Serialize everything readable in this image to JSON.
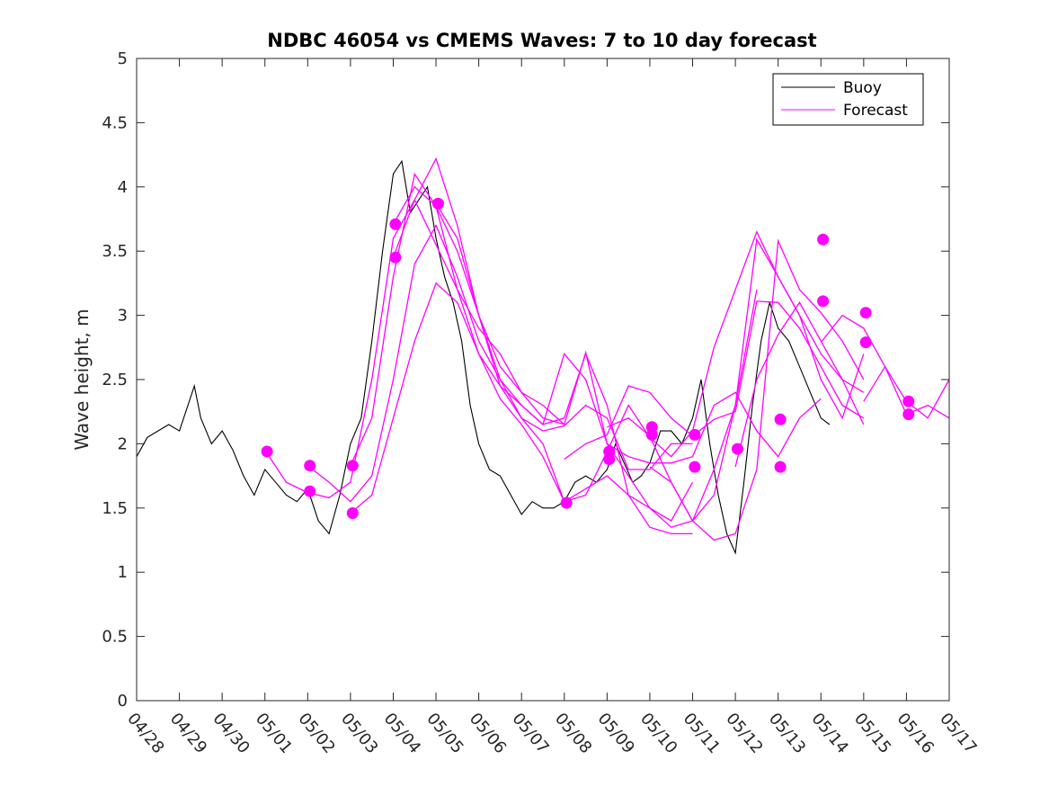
{
  "chart_data": {
    "type": "line",
    "title": "NDBC 46054 vs CMEMS Waves: 7 to 10 day forecast",
    "xlabel": "",
    "ylabel": "Wave height, m",
    "ylim": [
      0,
      5
    ],
    "xlim": [
      "04/28",
      "05/17"
    ],
    "x_ticks": [
      "04/28",
      "04/29",
      "04/30",
      "05/01",
      "05/02",
      "05/03",
      "05/04",
      "05/05",
      "05/06",
      "05/07",
      "05/08",
      "05/09",
      "05/10",
      "05/11",
      "05/12",
      "05/13",
      "05/14",
      "05/15",
      "05/16",
      "05/17"
    ],
    "y_ticks": [
      "0",
      "0.5",
      "1",
      "1.5",
      "2",
      "2.5",
      "3",
      "3.5",
      "4",
      "4.5",
      "5"
    ],
    "grid": false,
    "legend_position": "top-right",
    "colors": {
      "buoy": "#000000",
      "forecast": "#ff00ff"
    },
    "series": [
      {
        "name": "Buoy",
        "x_days": [
          0,
          0.25,
          0.5,
          0.75,
          1,
          1.2,
          1.35,
          1.5,
          1.75,
          2,
          2.25,
          2.5,
          2.75,
          3,
          3.25,
          3.5,
          3.75,
          4,
          4.25,
          4.5,
          4.75,
          5,
          5.25,
          5.5,
          5.75,
          6,
          6.2,
          6.4,
          6.6,
          6.8,
          7,
          7.2,
          7.4,
          7.6,
          7.8,
          8,
          8.25,
          8.5,
          8.75,
          9,
          9.25,
          9.5,
          9.75,
          10,
          10.25,
          10.5,
          10.75,
          11,
          11.2,
          11.4,
          11.6,
          11.8,
          12,
          12.25,
          12.5,
          12.75,
          13,
          13.2,
          13.4,
          13.6,
          13.8,
          14,
          14.2,
          14.4,
          14.6,
          14.8,
          15,
          15.25,
          15.5,
          15.75,
          16,
          16.2
        ],
        "values": [
          1.9,
          2.05,
          2.1,
          2.15,
          2.1,
          2.3,
          2.45,
          2.2,
          2.0,
          2.1,
          1.95,
          1.75,
          1.6,
          1.8,
          1.7,
          1.6,
          1.55,
          1.65,
          1.4,
          1.3,
          1.6,
          2.0,
          2.2,
          2.8,
          3.5,
          4.1,
          4.2,
          3.8,
          3.9,
          4.0,
          3.6,
          3.3,
          3.1,
          2.8,
          2.3,
          2.0,
          1.8,
          1.75,
          1.6,
          1.45,
          1.55,
          1.5,
          1.5,
          1.55,
          1.7,
          1.75,
          1.7,
          1.8,
          2.0,
          1.85,
          1.7,
          1.75,
          1.85,
          2.1,
          2.1,
          2.0,
          2.2,
          2.5,
          2.0,
          1.6,
          1.3,
          1.15,
          1.7,
          2.3,
          2.8,
          3.1,
          2.9,
          2.8,
          2.6,
          2.4,
          2.2,
          2.15
        ]
      },
      {
        "name": "Forecast",
        "runs": [
          {
            "x_days": [
              3,
              3.5,
              4,
              4.5,
              5,
              5.5,
              6,
              6.5,
              7,
              7.5,
              8,
              8.5,
              9,
              9.5,
              10
            ],
            "values": [
              1.95,
              1.7,
              1.62,
              1.58,
              1.7,
              2.5,
              3.6,
              3.9,
              3.55,
              3.2,
              2.9,
              2.7,
              2.4,
              2.3,
              2.15
            ]
          },
          {
            "x_days": [
              4,
              4.5,
              5,
              5.5,
              6,
              6.5,
              7,
              7.5,
              8,
              8.5,
              9,
              9.5,
              10,
              10.5,
              11,
              11.5,
              12,
              12.5,
              13
            ],
            "values": [
              1.83,
              1.7,
              1.55,
              1.75,
              2.5,
              3.4,
              3.7,
              3.3,
              2.8,
              2.5,
              2.3,
              2.15,
              2.2,
              2.7,
              2.3,
              1.6,
              1.35,
              1.3,
              1.3
            ]
          },
          {
            "x_days": [
              5,
              5.5,
              6,
              6.5,
              7,
              7.5,
              8,
              8.5,
              9,
              9.5,
              10,
              10.5,
              11,
              11.5,
              12,
              12.5,
              13,
              13.5,
              14,
              14.5
            ],
            "values": [
              1.83,
              2.2,
              3.3,
              4.1,
              3.85,
              3.2,
              2.7,
              2.45,
              2.3,
              2.15,
              2.7,
              2.5,
              2.0,
              1.75,
              1.5,
              1.35,
              1.4,
              1.8,
              2.3,
              3.2
            ]
          },
          {
            "x_days": [
              5,
              5.5,
              6,
              6.5,
              7,
              7.5,
              8,
              8.5,
              9,
              9.5,
              10,
              10.5,
              11,
              11.5,
              12,
              12.5,
              13
            ],
            "values": [
              1.46,
              1.6,
              2.2,
              2.8,
              3.25,
              3.1,
              2.7,
              2.35,
              2.15,
              1.9,
              1.55,
              1.65,
              1.75,
              1.6,
              1.5,
              1.4,
              1.7
            ]
          },
          {
            "x_days": [
              6,
              6.5,
              7,
              7.5,
              8,
              8.5,
              9,
              9.5,
              10,
              10.5,
              11,
              11.5,
              12,
              12.5,
              13,
              13.5,
              14,
              14.5,
              15,
              15.5,
              16
            ],
            "values": [
              3.71,
              4.0,
              3.85,
              3.5,
              3.0,
              2.6,
              2.4,
              2.2,
              2.15,
              2.71,
              2.0,
              1.9,
              1.85,
              1.85,
              1.9,
              2.3,
              2.4,
              2.1,
              1.9,
              2.2,
              2.35
            ]
          },
          {
            "x_days": [
              6,
              6.5,
              7,
              7.5,
              8,
              8.5,
              9,
              9.5,
              10,
              10.5,
              11,
              11.5,
              12,
              12.5,
              13
            ],
            "values": [
              3.45,
              3.9,
              4.22,
              3.7,
              3.0,
              2.5,
              2.2,
              2.1,
              2.14,
              2.3,
              2.2,
              1.8,
              1.8,
              2.0,
              2.0
            ]
          },
          {
            "x_days": [
              7,
              7.5,
              8,
              8.5,
              9,
              9.5,
              10,
              10.5,
              11,
              11.5,
              12,
              12.5,
              13,
              13.5,
              14,
              14.5,
              15,
              15.5,
              16,
              16.5,
              17
            ],
            "values": [
              3.87,
              3.6,
              3.0,
              2.45,
              2.2,
              2.0,
              1.55,
              1.6,
              1.94,
              2.3,
              2.05,
              1.9,
              2.1,
              2.75,
              3.2,
              3.65,
              3.3,
              3.0,
              2.7,
              2.5,
              2.4
            ]
          },
          {
            "x_days": [
              10,
              10.5,
              11,
              11.5,
              12,
              12.5,
              13,
              13.5,
              14,
              14.5,
              15,
              15.5,
              16,
              16.5,
              17
            ],
            "values": [
              1.88,
              2.0,
              2.07,
              2.45,
              2.4,
              2.2,
              2.06,
              2.19,
              2.25,
              3.11,
              3.1,
              2.9,
              2.6,
              2.3,
              2.2
            ]
          },
          {
            "x_days": [
              11,
              11.5,
              12,
              12.5,
              13,
              13.5,
              14,
              14.5,
              15,
              15.5,
              16,
              16.5,
              17
            ],
            "values": [
              2.13,
              2.2,
              2.06,
              1.7,
              1.4,
              1.6,
              2.3,
              3.59,
              3.3,
              3.0,
              2.5,
              2.2,
              2.7
            ]
          },
          {
            "x_days": [
              12,
              12.5,
              13,
              13.5,
              14,
              14.5,
              15,
              15.5,
              16,
              16.5,
              17
            ],
            "values": [
              1.82,
              1.7,
              1.4,
              1.25,
              1.3,
              1.8,
              3.58,
              3.2,
              3.02,
              2.8,
              2.5
            ]
          },
          {
            "x_days": [
              14,
              14.5,
              15,
              15.5,
              16,
              16.5,
              17
            ],
            "values": [
              1.82,
              2.5,
              2.85,
              3.1,
              2.8,
              2.5,
              2.15
            ]
          },
          {
            "x_days": [
              16,
              16.5,
              17,
              17.5,
              18,
              18.5,
              19
            ],
            "values": [
              2.79,
              3.0,
              2.9,
              2.6,
              2.33,
              2.2,
              2.5
            ]
          },
          {
            "x_days": [
              17,
              17.5,
              18,
              18.5,
              19
            ],
            "values": [
              2.33,
              2.6,
              2.23,
              2.3,
              2.2
            ]
          }
        ],
        "markers": [
          {
            "x": 3.05,
            "y": 1.94
          },
          {
            "x": 4.05,
            "y": 1.83
          },
          {
            "x": 4.05,
            "y": 1.63
          },
          {
            "x": 5.05,
            "y": 1.83
          },
          {
            "x": 5.05,
            "y": 1.46
          },
          {
            "x": 6.05,
            "y": 3.71
          },
          {
            "x": 6.05,
            "y": 3.45
          },
          {
            "x": 7.05,
            "y": 3.87
          },
          {
            "x": 10.05,
            "y": 1.54
          },
          {
            "x": 11.05,
            "y": 1.94
          },
          {
            "x": 11.05,
            "y": 1.88
          },
          {
            "x": 12.05,
            "y": 2.13
          },
          {
            "x": 12.05,
            "y": 2.07
          },
          {
            "x": 13.05,
            "y": 2.07
          },
          {
            "x": 13.05,
            "y": 1.82
          },
          {
            "x": 14.05,
            "y": 1.96
          },
          {
            "x": 15.05,
            "y": 2.19
          },
          {
            "x": 15.05,
            "y": 1.82
          },
          {
            "x": 16.05,
            "y": 3.59
          },
          {
            "x": 16.05,
            "y": 3.11
          },
          {
            "x": 17.05,
            "y": 3.02
          },
          {
            "x": 17.05,
            "y": 2.79
          },
          {
            "x": 18.05,
            "y": 2.33
          },
          {
            "x": 18.05,
            "y": 2.23
          }
        ]
      }
    ]
  }
}
